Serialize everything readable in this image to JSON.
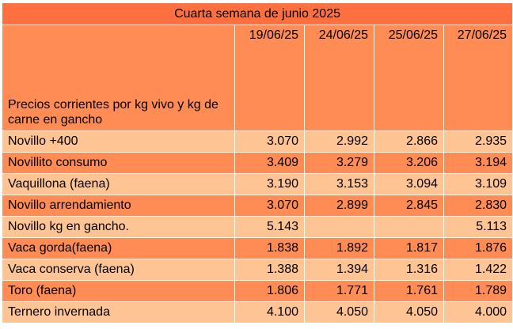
{
  "colors": {
    "title_bg": "#ff7040",
    "header_bg": "#ff8b55",
    "row_light": "#ffc494",
    "row_dark": "#ff8b55"
  },
  "title": "Cuarta semana de junio 2025",
  "label_header": "Precios corrientes  por kg vivo y kg de carne en gancho",
  "dates": [
    "19/06/25",
    "24/06/25",
    "25/06/25",
    "27/06/25"
  ],
  "rows": [
    {
      "name": "Novillo +400",
      "values": [
        "3.070",
        "2.992",
        "2.866",
        "2.935"
      ]
    },
    {
      "name": "Novillito consumo",
      "values": [
        "3.409",
        "3.279",
        "3.206",
        "3.194"
      ]
    },
    {
      "name": "Vaquillona (faena)",
      "values": [
        "3.190",
        "3.153",
        "3.094",
        "3.109"
      ]
    },
    {
      "name": "Novillo arrendamiento",
      "values": [
        "3.070",
        "2.899",
        "2.845",
        "2.830"
      ]
    },
    {
      "name": "Novillo kg en gancho.",
      "values": [
        "5.143",
        "",
        "",
        "5.113"
      ]
    },
    {
      "name": "Vaca gorda(faena)",
      "values": [
        "1.838",
        "1.892",
        "1.817",
        "1.876"
      ]
    },
    {
      "name": "Vaca conserva (faena)",
      "values": [
        "1.388",
        "1.394",
        "1.316",
        "1.422"
      ]
    },
    {
      "name": "Toro (faena)",
      "values": [
        "1.806",
        "1.771",
        "1.761",
        "1.789"
      ]
    },
    {
      "name": "Ternero invernada",
      "values": [
        "4.100",
        "4.050",
        "4.050",
        "4.000"
      ]
    }
  ]
}
